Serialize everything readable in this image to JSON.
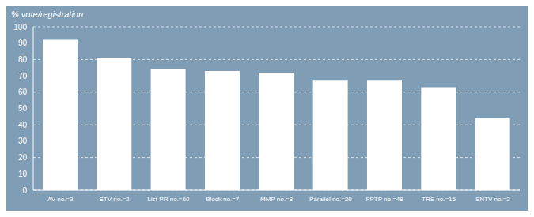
{
  "chart_data": {
    "type": "bar",
    "ylabel": "% vote/registration",
    "categories": [
      "AV no.=3",
      "STV no.=2",
      "List-PR no.=60",
      "Block no.=7",
      "MMP no.=8",
      "Parallel no.=20",
      "FPTP no.=48",
      "TRS no.=15",
      "SNTV no.=2"
    ],
    "values": [
      92,
      81,
      74,
      73,
      72,
      67,
      67,
      63,
      44
    ],
    "color": "#ffffff",
    "ylim": [
      0,
      100
    ],
    "yticks": [
      0,
      10,
      20,
      30,
      40,
      50,
      60,
      70,
      80,
      90,
      100
    ],
    "grid": true
  }
}
